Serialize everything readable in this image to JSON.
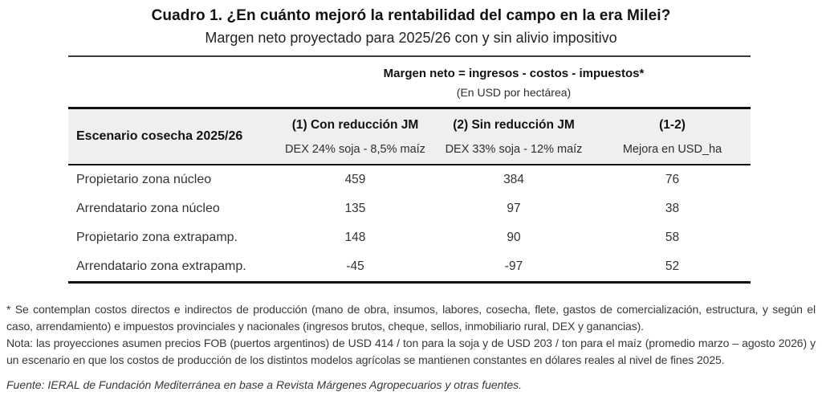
{
  "title": "Cuadro 1. ¿En cuánto mejoró la rentabilidad del campo en la era Milei?",
  "subtitle": "Margen neto proyectado para 2025/26 con y sin alivio impositivo",
  "table": {
    "formula_header": "Margen neto = ingresos - costos  - impuestos*",
    "formula_sub": "(En USD por hectárea)",
    "row_header_label": "Escenario cosecha 2025/26",
    "columns": [
      {
        "title": "(1) Con reducción JM",
        "subtitle": "DEX 24% soja - 8,5% maíz"
      },
      {
        "title": "(2) Sin reducción JM",
        "subtitle": "DEX 33% soja - 12% maíz"
      },
      {
        "title": "(1-2)",
        "subtitle": "Mejora en USD_ha"
      }
    ],
    "rows": [
      {
        "label": "Propietario zona núcleo",
        "values": [
          "459",
          "384",
          "76"
        ]
      },
      {
        "label": "Arrendatario zona núcleo",
        "values": [
          "135",
          "97",
          "38"
        ]
      },
      {
        "label": "Propietario zona extrapamp.",
        "values": [
          "148",
          "90",
          "58"
        ]
      },
      {
        "label": "Arrendatario zona extrapamp.",
        "values": [
          "-45",
          "-97",
          "52"
        ]
      }
    ]
  },
  "notes": {
    "footnote": "* Se contemplan costos directos e indirectos de producción (mano de obra, insumos, labores, cosecha, flete, gastos de comercialización, estructura, y según el caso, arrendamiento) e impuestos provinciales y nacionales (ingresos brutos, cheque, sellos, inmobiliario rural, DEX y ganancias).",
    "nota": "Nota: las proyecciones asumen precios FOB (puertos argentinos) de USD 414 / ton para la soja y de USD 203 / ton para el maíz (promedio marzo – agosto 2026) y un escenario en que los costos de producción de los distintos modelos agrícolas se mantienen constantes en dólares reales al nivel de fines 2025."
  },
  "source": "Fuente: IERAL de Fundación Mediterránea en base a Revista Márgenes Agropecuarios y otras fuentes.",
  "colors": {
    "header_bg": "#efefef",
    "rule_dark": "#111111",
    "rule_thin": "#3c3c3c",
    "body_text": "#333333"
  },
  "chart_data": {
    "type": "table",
    "title": "Cuadro 1. ¿En cuánto mejoró la rentabilidad del campo en la era Milei?",
    "subtitle": "Margen neto proyectado para 2025/26 con y sin alivio impositivo",
    "units": "USD por hectárea",
    "row_header": "Escenario cosecha 2025/26",
    "categories": [
      "Propietario zona núcleo",
      "Arrendatario zona núcleo",
      "Propietario zona extrapamp.",
      "Arrendatario zona extrapamp."
    ],
    "series": [
      {
        "name": "(1) Con reducción JM — DEX 24% soja - 8,5% maíz",
        "values": [
          459,
          135,
          148,
          -45
        ]
      },
      {
        "name": "(2) Sin reducción JM — DEX 33% soja - 12% maíz",
        "values": [
          384,
          97,
          90,
          -97
        ]
      },
      {
        "name": "(1-2) Mejora en USD_ha",
        "values": [
          76,
          38,
          58,
          52
        ]
      }
    ],
    "annotations": [
      "Margen neto = ingresos - costos - impuestos*",
      "(En USD por hectárea)"
    ]
  }
}
